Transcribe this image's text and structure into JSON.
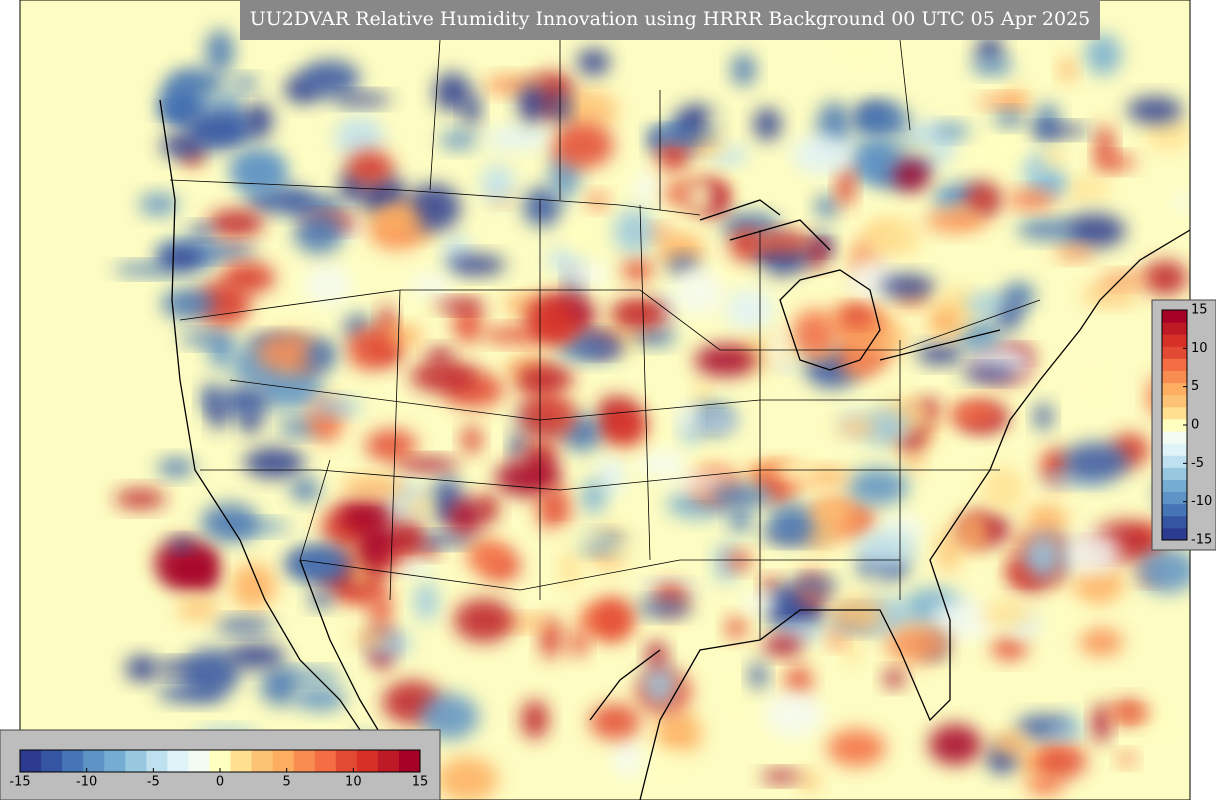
{
  "title": "UU2DVAR Relative Humidity Innovation using HRRR Background 00 UTC 05 Apr 2025",
  "colorbar": {
    "range": [
      -15,
      15
    ],
    "ticks": [
      -15,
      -10,
      -5,
      0,
      5,
      10,
      15
    ],
    "colors": [
      "#2c3b8f",
      "#3555a3",
      "#4575b4",
      "#5d93c5",
      "#74add1",
      "#98c8e0",
      "#bfe0ee",
      "#e0f3f8",
      "#f4fbf2",
      "#ffffbf",
      "#fee090",
      "#fdc374",
      "#fdae61",
      "#f88d52",
      "#f46d43",
      "#e34a33",
      "#d73027",
      "#bd1a26",
      "#a50026"
    ]
  }
}
